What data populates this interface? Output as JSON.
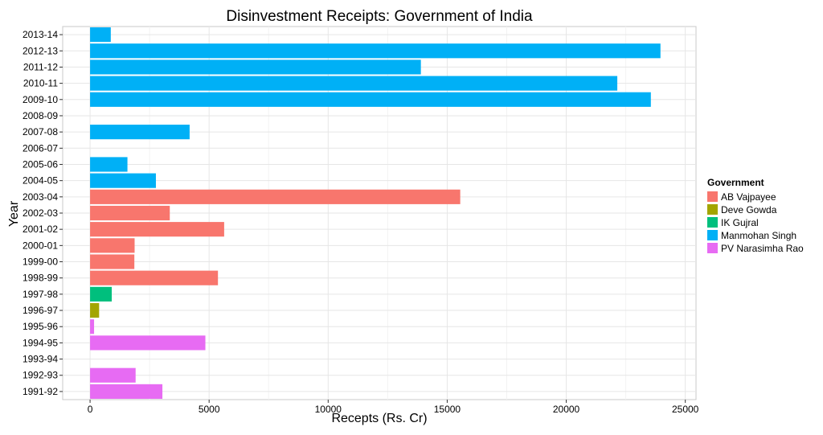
{
  "chart_data": {
    "type": "bar",
    "orientation": "horizontal",
    "title": "Disinvestment Receipts: Government of India",
    "xlabel": "Recepts (Rs. Cr)",
    "ylabel": "Year",
    "xlim": [
      -1150,
      25450
    ],
    "xticks": [
      "0",
      "5000",
      "10000",
      "15000",
      "20000",
      "25000"
    ],
    "grid": true,
    "legend_position": "right",
    "legend_title": "Government",
    "legend": [
      {
        "name": "AB Vajpayee",
        "color": "#F8766D"
      },
      {
        "name": "Deve Gowda",
        "color": "#A3A500"
      },
      {
        "name": "IK Gujral",
        "color": "#00BF7D"
      },
      {
        "name": "Manmohan Singh",
        "color": "#00B0F6"
      },
      {
        "name": "PV Narasimha Rao",
        "color": "#E76BF3"
      }
    ],
    "categories": [
      "1991-92",
      "1992-93",
      "1993-94",
      "1994-95",
      "1995-96",
      "1996-97",
      "1997-98",
      "1998-99",
      "1999-00",
      "2000-01",
      "2001-02",
      "2002-03",
      "2003-04",
      "2004-05",
      "2005-06",
      "2006-07",
      "2007-08",
      "2008-09",
      "2009-10",
      "2010-11",
      "2011-12",
      "2012-13",
      "2013-14"
    ],
    "values": [
      3038,
      1913,
      0,
      4843,
      168,
      380,
      910,
      5371,
      1860,
      1871,
      5632,
      3348,
      15547,
      2765,
      1570,
      0,
      4181,
      0,
      23553,
      22144,
      13894,
      23957,
      870
    ],
    "government": [
      "PV Narasimha Rao",
      "PV Narasimha Rao",
      "PV Narasimha Rao",
      "PV Narasimha Rao",
      "PV Narasimha Rao",
      "Deve Gowda",
      "IK Gujral",
      "AB Vajpayee",
      "AB Vajpayee",
      "AB Vajpayee",
      "AB Vajpayee",
      "AB Vajpayee",
      "AB Vajpayee",
      "Manmohan Singh",
      "Manmohan Singh",
      "Manmohan Singh",
      "Manmohan Singh",
      "Manmohan Singh",
      "Manmohan Singh",
      "Manmohan Singh",
      "Manmohan Singh",
      "Manmohan Singh",
      "Manmohan Singh"
    ]
  }
}
